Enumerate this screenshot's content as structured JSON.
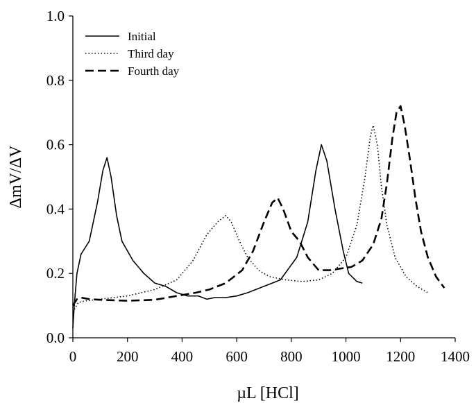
{
  "chart_data": {
    "type": "line",
    "title": "",
    "xlabel": "µL [HCl]",
    "ylabel": "ΔmV/ΔV",
    "xlim": [
      0,
      1400
    ],
    "ylim": [
      0,
      1.0
    ],
    "xticks": [
      0,
      200,
      400,
      600,
      800,
      1000,
      1200,
      1400
    ],
    "yticks": [
      0.0,
      0.2,
      0.4,
      0.6,
      0.8,
      1.0
    ],
    "ytick_labels": [
      "0.0",
      "0.2",
      "0.4",
      "0.6",
      "0.8",
      "1.0"
    ],
    "grid": false,
    "legend_position": "top-left",
    "series": [
      {
        "name": "Initial",
        "style": "solid",
        "points": [
          [
            0,
            0.03
          ],
          [
            5,
            0.1
          ],
          [
            15,
            0.2
          ],
          [
            30,
            0.26
          ],
          [
            60,
            0.3
          ],
          [
            90,
            0.42
          ],
          [
            110,
            0.52
          ],
          [
            125,
            0.56
          ],
          [
            140,
            0.5
          ],
          [
            160,
            0.38
          ],
          [
            180,
            0.3
          ],
          [
            220,
            0.24
          ],
          [
            260,
            0.2
          ],
          [
            300,
            0.17
          ],
          [
            340,
            0.16
          ],
          [
            380,
            0.14
          ],
          [
            420,
            0.13
          ],
          [
            460,
            0.13
          ],
          [
            490,
            0.12
          ],
          [
            520,
            0.125
          ],
          [
            560,
            0.125
          ],
          [
            600,
            0.13
          ],
          [
            640,
            0.14
          ],
          [
            700,
            0.16
          ],
          [
            760,
            0.18
          ],
          [
            820,
            0.25
          ],
          [
            860,
            0.36
          ],
          [
            890,
            0.52
          ],
          [
            910,
            0.6
          ],
          [
            930,
            0.55
          ],
          [
            960,
            0.4
          ],
          [
            990,
            0.27
          ],
          [
            1010,
            0.2
          ],
          [
            1040,
            0.175
          ],
          [
            1060,
            0.17
          ]
        ]
      },
      {
        "name": "Third day",
        "style": "dotted",
        "points": [
          [
            0,
            0.08
          ],
          [
            20,
            0.11
          ],
          [
            50,
            0.115
          ],
          [
            100,
            0.12
          ],
          [
            200,
            0.13
          ],
          [
            300,
            0.15
          ],
          [
            380,
            0.18
          ],
          [
            440,
            0.24
          ],
          [
            490,
            0.32
          ],
          [
            530,
            0.36
          ],
          [
            560,
            0.38
          ],
          [
            580,
            0.36
          ],
          [
            610,
            0.3
          ],
          [
            640,
            0.25
          ],
          [
            680,
            0.21
          ],
          [
            720,
            0.19
          ],
          [
            780,
            0.18
          ],
          [
            840,
            0.175
          ],
          [
            900,
            0.18
          ],
          [
            950,
            0.2
          ],
          [
            1000,
            0.25
          ],
          [
            1040,
            0.35
          ],
          [
            1070,
            0.5
          ],
          [
            1090,
            0.63
          ],
          [
            1100,
            0.66
          ],
          [
            1115,
            0.6
          ],
          [
            1130,
            0.47
          ],
          [
            1150,
            0.35
          ],
          [
            1180,
            0.25
          ],
          [
            1220,
            0.19
          ],
          [
            1260,
            0.16
          ],
          [
            1300,
            0.14
          ]
        ]
      },
      {
        "name": "Fourth day",
        "style": "dashed",
        "points": [
          [
            0,
            0.1
          ],
          [
            15,
            0.12
          ],
          [
            30,
            0.125
          ],
          [
            60,
            0.12
          ],
          [
            100,
            0.118
          ],
          [
            200,
            0.115
          ],
          [
            300,
            0.118
          ],
          [
            380,
            0.13
          ],
          [
            450,
            0.14
          ],
          [
            500,
            0.15
          ],
          [
            560,
            0.17
          ],
          [
            620,
            0.21
          ],
          [
            660,
            0.27
          ],
          [
            700,
            0.36
          ],
          [
            730,
            0.42
          ],
          [
            750,
            0.435
          ],
          [
            770,
            0.4
          ],
          [
            800,
            0.33
          ],
          [
            830,
            0.3
          ],
          [
            860,
            0.25
          ],
          [
            900,
            0.21
          ],
          [
            940,
            0.21
          ],
          [
            980,
            0.215
          ],
          [
            1020,
            0.22
          ],
          [
            1060,
            0.24
          ],
          [
            1100,
            0.29
          ],
          [
            1130,
            0.37
          ],
          [
            1150,
            0.48
          ],
          [
            1170,
            0.62
          ],
          [
            1185,
            0.7
          ],
          [
            1200,
            0.72
          ],
          [
            1215,
            0.66
          ],
          [
            1235,
            0.55
          ],
          [
            1255,
            0.43
          ],
          [
            1275,
            0.33
          ],
          [
            1300,
            0.25
          ],
          [
            1330,
            0.19
          ],
          [
            1360,
            0.155
          ]
        ]
      }
    ]
  }
}
